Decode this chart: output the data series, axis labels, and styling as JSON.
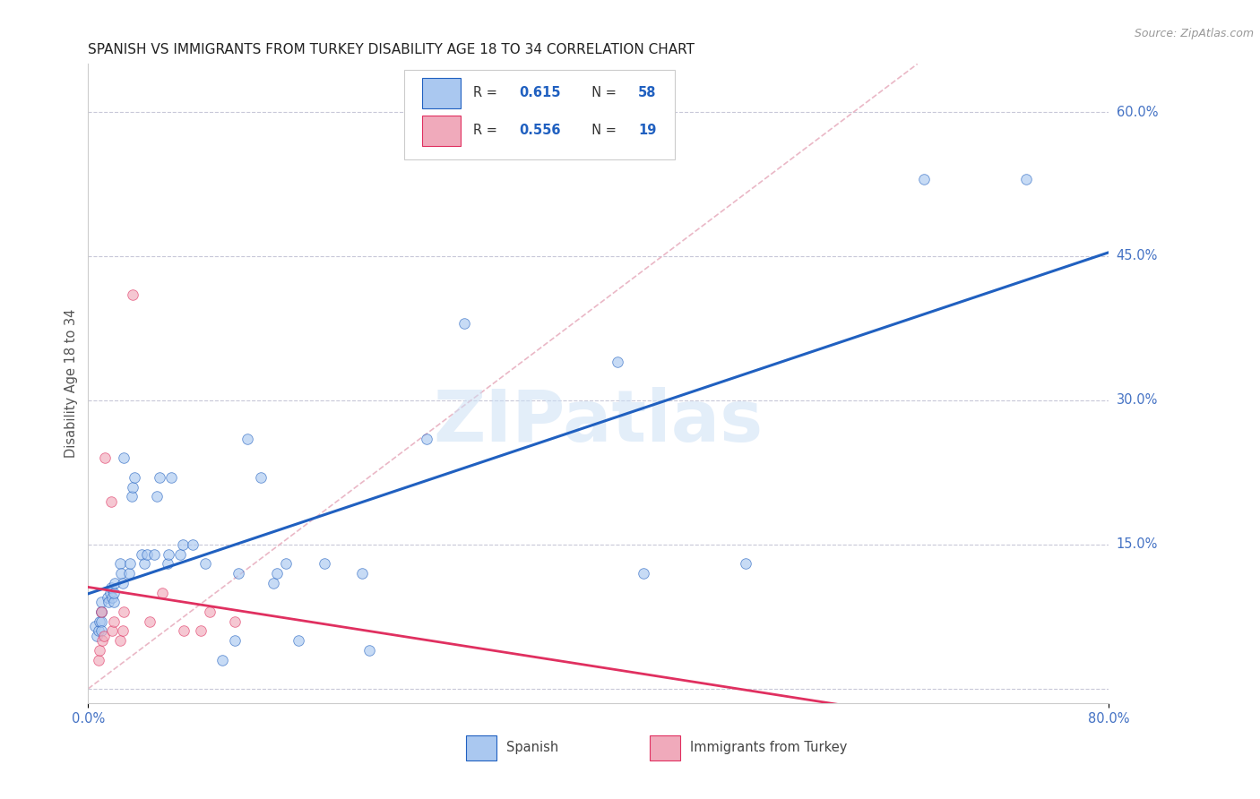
{
  "title": "SPANISH VS IMMIGRANTS FROM TURKEY DISABILITY AGE 18 TO 34 CORRELATION CHART",
  "source": "Source: ZipAtlas.com",
  "ylabel": "Disability Age 18 to 34",
  "xlim": [
    0.0,
    0.8
  ],
  "ylim": [
    -0.015,
    0.65
  ],
  "ytick_positions": [
    0.0,
    0.15,
    0.3,
    0.45,
    0.6
  ],
  "yticklabels": [
    "",
    "15.0%",
    "30.0%",
    "45.0%",
    "60.0%"
  ],
  "spanish_x": [
    0.005,
    0.007,
    0.008,
    0.009,
    0.01,
    0.01,
    0.01,
    0.01,
    0.01,
    0.015,
    0.016,
    0.017,
    0.018,
    0.019,
    0.02,
    0.02,
    0.021,
    0.025,
    0.026,
    0.027,
    0.028,
    0.032,
    0.033,
    0.034,
    0.035,
    0.036,
    0.042,
    0.044,
    0.046,
    0.052,
    0.054,
    0.056,
    0.062,
    0.063,
    0.065,
    0.072,
    0.074,
    0.082,
    0.092,
    0.105,
    0.115,
    0.118,
    0.125,
    0.135,
    0.145,
    0.148,
    0.155,
    0.165,
    0.185,
    0.215,
    0.22,
    0.265,
    0.295,
    0.415,
    0.435,
    0.515,
    0.655,
    0.735
  ],
  "spanish_y": [
    0.065,
    0.055,
    0.06,
    0.07,
    0.08,
    0.09,
    0.08,
    0.07,
    0.06,
    0.095,
    0.09,
    0.1,
    0.105,
    0.095,
    0.09,
    0.1,
    0.11,
    0.13,
    0.12,
    0.11,
    0.24,
    0.12,
    0.13,
    0.2,
    0.21,
    0.22,
    0.14,
    0.13,
    0.14,
    0.14,
    0.2,
    0.22,
    0.13,
    0.14,
    0.22,
    0.14,
    0.15,
    0.15,
    0.13,
    0.03,
    0.05,
    0.12,
    0.26,
    0.22,
    0.11,
    0.12,
    0.13,
    0.05,
    0.13,
    0.12,
    0.04,
    0.26,
    0.38,
    0.34,
    0.12,
    0.13,
    0.53,
    0.53
  ],
  "turkey_x": [
    0.008,
    0.009,
    0.01,
    0.011,
    0.012,
    0.013,
    0.018,
    0.019,
    0.02,
    0.025,
    0.027,
    0.028,
    0.035,
    0.048,
    0.058,
    0.075,
    0.088,
    0.095,
    0.115
  ],
  "turkey_y": [
    0.03,
    0.04,
    0.08,
    0.05,
    0.055,
    0.24,
    0.195,
    0.06,
    0.07,
    0.05,
    0.06,
    0.08,
    0.41,
    0.07,
    0.1,
    0.06,
    0.06,
    0.08,
    0.07
  ],
  "spanish_color": "#aac8f0",
  "turkey_color": "#f0aabb",
  "spanish_line_color": "#2060c0",
  "turkey_line_color": "#e03060",
  "diagonal_color": "#e8b0c0",
  "R_spanish": "0.615",
  "N_spanish": "58",
  "R_turkey": "0.556",
  "N_turkey": "19",
  "watermark_text": "ZIPatlas",
  "scatter_size": 70,
  "scatter_alpha": 0.65,
  "figsize": [
    14.06,
    8.92
  ],
  "dpi": 100
}
